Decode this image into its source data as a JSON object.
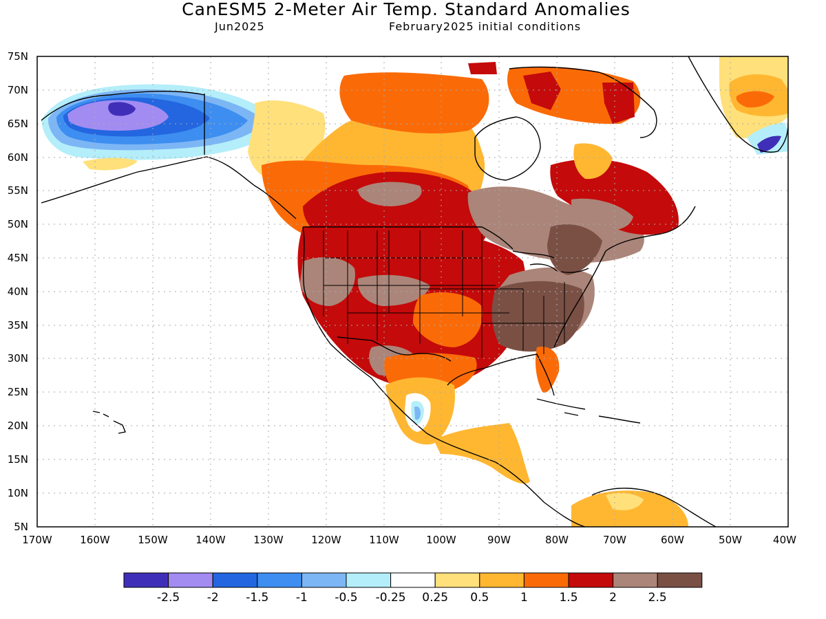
{
  "header": {
    "title": "CanESM5 2-Meter Air Temp. Standard Anomalies",
    "valid": "Jun2025",
    "init": "February2025 initial conditions"
  },
  "map": {
    "lon_range": [
      -170,
      -40
    ],
    "lat_range": [
      5,
      75
    ],
    "lat_ticks": [
      "5N",
      "10N",
      "15N",
      "20N",
      "25N",
      "30N",
      "35N",
      "40N",
      "45N",
      "50N",
      "55N",
      "60N",
      "65N",
      "70N",
      "75N"
    ],
    "lon_ticks": [
      "170W",
      "160W",
      "150W",
      "140W",
      "130W",
      "120W",
      "110W",
      "100W",
      "90W",
      "80W",
      "70W",
      "60W",
      "50W",
      "40W"
    ]
  },
  "colorbar": {
    "colors": [
      "#3f2fb8",
      "#a28cf2",
      "#2366e0",
      "#3d8ef0",
      "#7db6f5",
      "#b4eefa",
      "#ffffff",
      "#ffe07a",
      "#ffb731",
      "#fa6b08",
      "#c40a0a",
      "#ab8579",
      "#7a5045"
    ],
    "labels": [
      "-2.5",
      "-2",
      "-1.5",
      "-1",
      "-0.5",
      "-0.25",
      "0.25",
      "0.5",
      "1",
      "1.5",
      "2",
      "2.5"
    ]
  }
}
